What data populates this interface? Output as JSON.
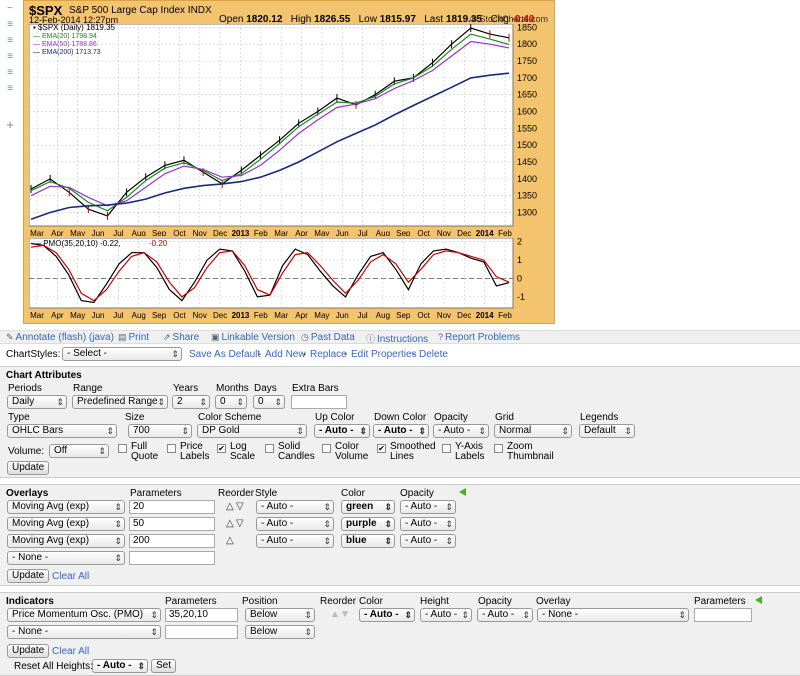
{
  "header": {
    "symbol": "$SPX",
    "name": "S&P 500 Large Cap Index  INDX",
    "date": "12-Feb-2014 12:27pm",
    "open_label": "Open",
    "open": "1820.12",
    "high_label": "High",
    "high": "1826.55",
    "low_label": "Low",
    "low": "1815.97",
    "last_label": "Last",
    "last": "1819.35",
    "chg_label": "Chg",
    "chg": "-0.40 (-0.02%)",
    "chg_icon": "down-arrow-icon",
    "credit": "© StockCharts.com"
  },
  "chart_data": [
    {
      "type": "line",
      "legend": [
        {
          "name": "$SPX (Daily) 1819.35",
          "color": "#000000"
        },
        {
          "name": "EMA(20) 1798.94",
          "color": "#1a8a1a"
        },
        {
          "name": "EMA(50) 1788.86",
          "color": "#9933cc"
        },
        {
          "name": "EMA(200) 1713.73",
          "color": "#1a2a7a"
        }
      ],
      "x_tick_labels": [
        "Mar",
        "Apr",
        "May",
        "Jun",
        "Jul",
        "Aug",
        "Sep",
        "Oct",
        "Nov",
        "Dec",
        "2013",
        "Feb",
        "Mar",
        "Apr",
        "May",
        "Jun",
        "Jul",
        "Aug",
        "Sep",
        "Oct",
        "Nov",
        "Dec",
        "2014",
        "Feb"
      ],
      "y_tick_labels": [
        "1300",
        "1350",
        "1400",
        "1450",
        "1500",
        "1550",
        "1600",
        "1650",
        "1700",
        "1750",
        "1800",
        "1850"
      ],
      "ylim": [
        1260,
        1860
      ],
      "series": [
        {
          "name": "$SPX",
          "color": "#000000",
          "values": [
            1370,
            1400,
            1360,
            1310,
            1290,
            1360,
            1405,
            1440,
            1455,
            1420,
            1385,
            1425,
            1470,
            1515,
            1565,
            1600,
            1640,
            1620,
            1650,
            1690,
            1700,
            1745,
            1800,
            1848,
            1830,
            1819
          ]
        },
        {
          "name": "EMA(20)",
          "color": "#1a8a1a",
          "values": [
            1365,
            1392,
            1372,
            1330,
            1305,
            1345,
            1395,
            1432,
            1448,
            1425,
            1395,
            1415,
            1458,
            1505,
            1555,
            1592,
            1628,
            1625,
            1645,
            1682,
            1700,
            1735,
            1785,
            1830,
            1815,
            1799
          ]
        },
        {
          "name": "EMA(50)",
          "color": "#9933cc",
          "values": [
            1350,
            1378,
            1375,
            1345,
            1320,
            1335,
            1375,
            1415,
            1438,
            1428,
            1405,
            1410,
            1440,
            1485,
            1535,
            1575,
            1612,
            1622,
            1638,
            1668,
            1692,
            1722,
            1765,
            1808,
            1800,
            1789
          ]
        },
        {
          "name": "EMA(200)",
          "color": "#1a2a7a",
          "values": [
            1280,
            1300,
            1315,
            1320,
            1322,
            1328,
            1340,
            1358,
            1372,
            1380,
            1385,
            1392,
            1405,
            1425,
            1450,
            1480,
            1510,
            1535,
            1560,
            1590,
            1618,
            1645,
            1672,
            1700,
            1708,
            1714
          ]
        }
      ]
    },
    {
      "type": "line",
      "legend": [
        {
          "name": "PMO(35,20,10) -0.22,",
          "color": "#000000"
        },
        {
          "name": "-0.20",
          "color": "#cc0000"
        }
      ],
      "x_tick_labels": [
        "Mar",
        "Apr",
        "May",
        "Jun",
        "Jul",
        "Aug",
        "Sep",
        "Oct",
        "Nov",
        "Dec",
        "2013",
        "Feb",
        "Mar",
        "Apr",
        "May",
        "Jun",
        "Jul",
        "Aug",
        "Sep",
        "Oct",
        "Nov",
        "Dec",
        "2014",
        "Feb"
      ],
      "y_tick_labels": [
        "2",
        "1",
        "0",
        "-1"
      ],
      "ylim": [
        -1.6,
        2.2
      ],
      "series": [
        {
          "name": "PMO",
          "color": "#000000",
          "values": [
            1.9,
            1.8,
            1.2,
            0.2,
            -1.2,
            -1.3,
            -0.3,
            0.8,
            1.4,
            1.4,
            0.6,
            -0.6,
            -1.2,
            -0.2,
            1.0,
            1.6,
            1.5,
            0.4,
            -1.0,
            -0.9,
            0.7,
            1.6,
            1.3,
            0.4,
            -0.4,
            -1.0,
            0.2,
            1.2,
            1.4,
            0.5,
            -0.6,
            0.8,
            1.5,
            1.6,
            1.4,
            1.1,
            0.9,
            -0.4,
            -0.22
          ]
        },
        {
          "name": "Signal",
          "color": "#cc0000",
          "values": [
            1.7,
            1.8,
            1.4,
            0.5,
            -0.8,
            -1.2,
            -0.6,
            0.4,
            1.2,
            1.4,
            0.9,
            -0.2,
            -1.0,
            -0.5,
            0.6,
            1.4,
            1.5,
            0.7,
            -0.6,
            -0.9,
            0.3,
            1.3,
            1.4,
            0.7,
            -0.1,
            -0.8,
            -0.1,
            0.9,
            1.3,
            0.8,
            -0.2,
            0.5,
            1.3,
            1.5,
            1.4,
            1.2,
            1.0,
            0.1,
            -0.2
          ]
        }
      ]
    }
  ],
  "side": {
    "icons": [
      "minus-icon",
      "list-icon",
      "list-icon",
      "list-icon",
      "list-icon",
      "list-icon",
      "plus-icon"
    ]
  },
  "toolbar": {
    "annotate": "Annotate (flash) (java)",
    "print": "Print",
    "share": "Share",
    "linkable": "Linkable Version",
    "past": "Past Data",
    "instructions": "Instructions",
    "report": "Report Problems"
  },
  "styles": {
    "label": "ChartStyles:",
    "select": "- Select -",
    "save_default": "Save As Default",
    "add_new": "Add New",
    "replace": "Replace",
    "edit": "Edit Properties",
    "delete": "Delete",
    "sep": "-"
  },
  "attributes": {
    "title": "Chart Attributes",
    "periods_label": "Periods",
    "periods": "Daily",
    "range_label": "Range",
    "range": "Predefined Range",
    "years_label": "Years",
    "years": "2",
    "months_label": "Months",
    "months": "0",
    "days_label": "Days",
    "days": "0",
    "extra_label": "Extra Bars",
    "extra": "",
    "type_label": "Type",
    "type": "OHLC Bars",
    "size_label": "Size",
    "size": "700",
    "scheme_label": "Color Scheme",
    "scheme": "DP Gold",
    "up_label": "Up Color",
    "up": "- Auto -",
    "down_label": "Down Color",
    "down": "- Auto -",
    "opacity_label": "Opacity",
    "opacity": "- Auto -",
    "grid_label": "Grid",
    "grid": "Normal",
    "legends_label": "Legends",
    "legends": "Default",
    "volume_label": "Volume:",
    "volume": "Off",
    "cb_full": [
      "Full",
      "Quote"
    ],
    "cb_price": [
      "Price",
      "Labels"
    ],
    "cb_log": [
      "Log",
      "Scale"
    ],
    "cb_solid": [
      "Solid",
      "Candles"
    ],
    "cb_color": [
      "Color",
      "Volume"
    ],
    "cb_smooth": [
      "Smoothed",
      "Lines"
    ],
    "cb_yaxis": [
      "Y-Axis",
      "Labels"
    ],
    "cb_zoom": [
      "Zoom",
      "Thumbnail"
    ],
    "check": "✔",
    "update": "Update"
  },
  "overlays": {
    "title": "Overlays",
    "params_label": "Parameters",
    "reorder_label": "Reorder",
    "style_label": "Style",
    "color_label": "Color",
    "opacity_label": "Opacity",
    "rows": [
      {
        "type": "Moving Avg (exp)",
        "param": "20",
        "style": "- Auto -",
        "color": "green",
        "opacity": "- Auto -"
      },
      {
        "type": "Moving Avg (exp)",
        "param": "50",
        "style": "- Auto -",
        "color": "purple",
        "opacity": "- Auto -"
      },
      {
        "type": "Moving Avg (exp)",
        "param": "200",
        "style": "- Auto -",
        "color": "blue",
        "opacity": "- Auto -"
      },
      {
        "type": "- None -",
        "param": "",
        "style": "",
        "color": "",
        "opacity": ""
      }
    ],
    "up_arrow": "△",
    "down_arrow": "▽",
    "update": "Update",
    "clear": "Clear All"
  },
  "indicators": {
    "title": "Indicators",
    "params_label": "Parameters",
    "position_label": "Position",
    "reorder_label": "Reorder",
    "color_label": "Color",
    "height_label": "Height",
    "opacity_label": "Opacity",
    "overlay_label": "Overlay",
    "params2_label": "Parameters",
    "rows": [
      {
        "type": "Price Momentum Osc. (PMO)",
        "param": "35,20,10",
        "position": "Below",
        "color": "- Auto -",
        "height": "- Auto -",
        "opacity": "- Auto -",
        "overlay": "- None -"
      },
      {
        "type": "- None -",
        "param": "",
        "position": "Below"
      }
    ],
    "up_arrow": "▲",
    "down_arrow": "▼",
    "update": "Update",
    "clear": "Clear All",
    "reset_label": "Reset All Heights:",
    "reset": "- Auto -",
    "set": "Set"
  }
}
